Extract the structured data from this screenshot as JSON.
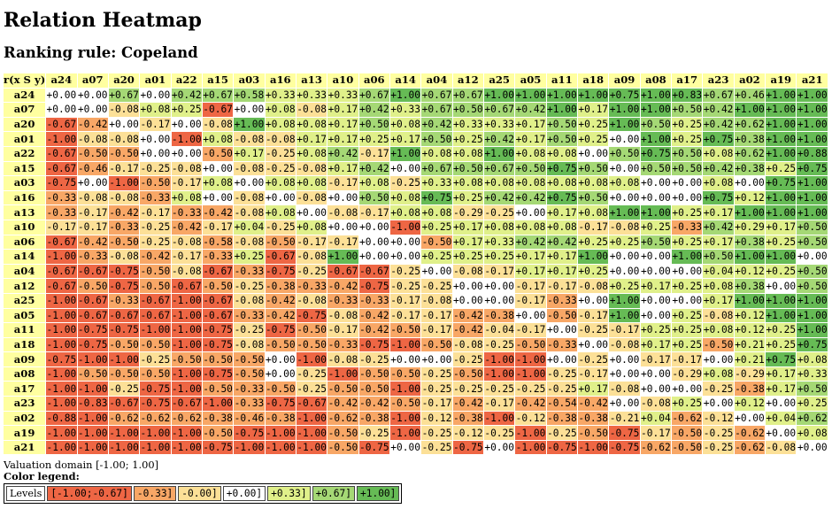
{
  "title": "Relation Heatmap",
  "subtitle": "Ranking rule: Copeland",
  "corner_label": "r(x S y)",
  "valuation_domain": "Valuation domain [-1.00; 1.00]",
  "legend": {
    "title": "Color legend:",
    "header": "Levels",
    "items": [
      {
        "label": "[-1.00;-0.67]",
        "color": "#ee6644"
      },
      {
        "label": "-0.33]",
        "color": "#f8a766"
      },
      {
        "label": "-0.00]",
        "color": "#fce097"
      },
      {
        "label": "+0.00]",
        "color": "#ffffff"
      },
      {
        "label": "+0.33]",
        "color": "#e0f08a"
      },
      {
        "label": "+0.67]",
        "color": "#a5d875"
      },
      {
        "label": "+1.00]",
        "color": "#66bb55"
      }
    ]
  },
  "chart_data": {
    "type": "heatmap",
    "title": "Relation Heatmap",
    "subtitle": "Ranking rule: Copeland",
    "domain": [
      -1.0,
      1.0
    ],
    "actions": [
      "a24",
      "a07",
      "a20",
      "a01",
      "a22",
      "a15",
      "a03",
      "a16",
      "a13",
      "a10",
      "a06",
      "a14",
      "a04",
      "a12",
      "a25",
      "a05",
      "a11",
      "a18",
      "a09",
      "a08",
      "a17",
      "a23",
      "a02",
      "a19",
      "a21"
    ],
    "matrix": [
      [
        "+0.00",
        "+0.00",
        "+0.67",
        "+0.00",
        "+0.42",
        "+0.67",
        "+0.58",
        "+0.33",
        "+0.33",
        "+0.33",
        "+0.67",
        "+1.00",
        "+0.67",
        "+0.67",
        "+1.00",
        "+1.00",
        "+1.00",
        "+1.00",
        "+0.75",
        "+1.00",
        "+0.83",
        "+0.67",
        "+0.46",
        "+1.00",
        "+1.00"
      ],
      [
        "+0.00",
        "+0.00",
        "-0.08",
        "+0.08",
        "+0.25",
        "-0.67",
        "+0.00",
        "+0.08",
        "-0.08",
        "+0.17",
        "+0.42",
        "+0.33",
        "+0.67",
        "+0.50",
        "+0.67",
        "+0.42",
        "+1.00",
        "+0.17",
        "+1.00",
        "+1.00",
        "+0.50",
        "+0.42",
        "+1.00",
        "+1.00",
        "+1.00"
      ],
      [
        "-0.67",
        "-0.42",
        "+0.00",
        "-0.17",
        "+0.00",
        "-0.08",
        "+1.00",
        "+0.08",
        "+0.08",
        "+0.17",
        "+0.50",
        "+0.08",
        "+0.42",
        "+0.33",
        "+0.33",
        "+0.17",
        "+0.50",
        "+0.25",
        "+1.00",
        "+0.50",
        "+0.25",
        "+0.42",
        "+0.62",
        "+1.00",
        "+1.00"
      ],
      [
        "-1.00",
        "-0.08",
        "-0.08",
        "+0.00",
        "-1.00",
        "+0.08",
        "-0.08",
        "-0.08",
        "+0.17",
        "+0.17",
        "+0.25",
        "+0.17",
        "+0.50",
        "+0.25",
        "+0.42",
        "+0.17",
        "+0.50",
        "+0.25",
        "+0.00",
        "+1.00",
        "+0.25",
        "+0.75",
        "+0.38",
        "+1.00",
        "+1.00"
      ],
      [
        "-0.67",
        "-0.50",
        "-0.50",
        "+0.00",
        "+0.00",
        "-0.50",
        "+0.17",
        "-0.25",
        "+0.08",
        "+0.42",
        "-0.17",
        "+1.00",
        "+0.08",
        "+0.08",
        "+1.00",
        "+0.08",
        "+0.08",
        "+0.00",
        "+0.50",
        "+0.75",
        "+0.50",
        "+0.08",
        "+0.62",
        "+1.00",
        "+0.88"
      ],
      [
        "-0.67",
        "-0.46",
        "-0.17",
        "-0.25",
        "-0.08",
        "+0.00",
        "-0.08",
        "-0.25",
        "-0.08",
        "+0.17",
        "+0.42",
        "+0.00",
        "+0.67",
        "+0.50",
        "+0.67",
        "+0.50",
        "+0.75",
        "+0.50",
        "+0.00",
        "+0.50",
        "+0.50",
        "+0.42",
        "+0.38",
        "+0.25",
        "+0.75"
      ],
      [
        "-0.75",
        "+0.00",
        "-1.00",
        "-0.50",
        "-0.17",
        "+0.08",
        "+0.00",
        "+0.08",
        "+0.08",
        "-0.17",
        "+0.08",
        "-0.25",
        "+0.33",
        "+0.08",
        "+0.08",
        "+0.08",
        "+0.08",
        "+0.08",
        "+0.08",
        "+0.00",
        "+0.00",
        "+0.08",
        "+0.00",
        "+0.75",
        "+1.00"
      ],
      [
        "-0.33",
        "-0.08",
        "-0.08",
        "-0.33",
        "+0.08",
        "+0.00",
        "-0.08",
        "+0.00",
        "-0.08",
        "+0.00",
        "+0.50",
        "+0.08",
        "+0.75",
        "+0.25",
        "+0.42",
        "+0.42",
        "+0.75",
        "+0.50",
        "+0.00",
        "+0.00",
        "+0.00",
        "+0.75",
        "+0.12",
        "+1.00",
        "+1.00"
      ],
      [
        "-0.33",
        "-0.17",
        "-0.42",
        "-0.17",
        "-0.33",
        "-0.42",
        "-0.08",
        "+0.08",
        "+0.00",
        "-0.08",
        "-0.17",
        "+0.08",
        "+0.08",
        "-0.29",
        "-0.25",
        "+0.00",
        "+0.17",
        "+0.08",
        "+1.00",
        "+1.00",
        "+0.25",
        "+0.17",
        "+1.00",
        "+1.00",
        "+1.00"
      ],
      [
        "-0.17",
        "-0.17",
        "-0.33",
        "-0.25",
        "-0.42",
        "-0.17",
        "+0.04",
        "-0.25",
        "+0.08",
        "+0.00",
        "+0.00",
        "-1.00",
        "+0.25",
        "+0.17",
        "+0.08",
        "+0.08",
        "+0.08",
        "-0.17",
        "-0.08",
        "+0.25",
        "-0.33",
        "+0.42",
        "+0.29",
        "+0.17",
        "+0.50"
      ],
      [
        "-0.67",
        "-0.42",
        "-0.50",
        "-0.25",
        "-0.08",
        "-0.58",
        "-0.08",
        "-0.50",
        "-0.17",
        "-0.17",
        "+0.00",
        "+0.00",
        "-0.50",
        "+0.17",
        "+0.33",
        "+0.42",
        "+0.42",
        "+0.25",
        "+0.25",
        "+0.50",
        "+0.25",
        "+0.17",
        "+0.38",
        "+0.25",
        "+0.50"
      ],
      [
        "-1.00",
        "-0.33",
        "-0.08",
        "-0.42",
        "-0.17",
        "-0.33",
        "+0.25",
        "-0.67",
        "-0.08",
        "+1.00",
        "+0.00",
        "+0.00",
        "+0.25",
        "+0.25",
        "+0.25",
        "+0.17",
        "+0.17",
        "+1.00",
        "+0.00",
        "+0.00",
        "+1.00",
        "+0.50",
        "+1.00",
        "+1.00",
        "+0.00"
      ],
      [
        "-0.67",
        "-0.67",
        "-0.75",
        "-0.50",
        "-0.08",
        "-0.67",
        "-0.33",
        "-0.75",
        "-0.25",
        "-0.67",
        "-0.67",
        "-0.25",
        "+0.00",
        "-0.08",
        "-0.17",
        "+0.17",
        "+0.17",
        "+0.25",
        "+0.00",
        "+0.00",
        "+0.00",
        "+0.04",
        "+0.12",
        "+0.25",
        "+0.50"
      ],
      [
        "-0.67",
        "-0.50",
        "-0.75",
        "-0.50",
        "-0.67",
        "-0.50",
        "-0.25",
        "-0.38",
        "-0.33",
        "-0.42",
        "-0.75",
        "-0.25",
        "-0.25",
        "+0.00",
        "+0.00",
        "-0.17",
        "-0.17",
        "-0.08",
        "+0.25",
        "+0.17",
        "+0.25",
        "+0.08",
        "+0.38",
        "+0.00",
        "+0.50"
      ],
      [
        "-1.00",
        "-0.67",
        "-0.33",
        "-0.67",
        "-1.00",
        "-0.67",
        "-0.08",
        "-0.42",
        "-0.08",
        "-0.33",
        "-0.33",
        "-0.17",
        "-0.08",
        "+0.00",
        "+0.00",
        "-0.17",
        "-0.33",
        "+0.00",
        "+1.00",
        "+0.00",
        "+0.00",
        "+0.17",
        "+1.00",
        "+1.00",
        "+1.00"
      ],
      [
        "-1.00",
        "-0.67",
        "-0.67",
        "-0.67",
        "-1.00",
        "-0.67",
        "-0.33",
        "-0.42",
        "-0.75",
        "-0.08",
        "-0.42",
        "-0.17",
        "-0.17",
        "-0.42",
        "-0.38",
        "+0.00",
        "-0.50",
        "-0.17",
        "+1.00",
        "+0.00",
        "+0.25",
        "-0.08",
        "+0.12",
        "+1.00",
        "+1.00"
      ],
      [
        "-1.00",
        "-0.75",
        "-0.75",
        "-1.00",
        "-1.00",
        "-0.75",
        "-0.25",
        "-0.75",
        "-0.50",
        "-0.17",
        "-0.42",
        "-0.50",
        "-0.17",
        "-0.42",
        "-0.04",
        "-0.17",
        "+0.00",
        "-0.25",
        "-0.17",
        "+0.25",
        "+0.25",
        "+0.08",
        "+0.12",
        "+0.25",
        "+1.00"
      ],
      [
        "-1.00",
        "-0.75",
        "-0.50",
        "-0.50",
        "-1.00",
        "-0.75",
        "-0.08",
        "-0.50",
        "-0.50",
        "-0.33",
        "-0.75",
        "-1.00",
        "-0.50",
        "-0.08",
        "-0.25",
        "-0.50",
        "-0.33",
        "+0.00",
        "-0.08",
        "+0.17",
        "+0.25",
        "-0.50",
        "+0.21",
        "+0.25",
        "+0.75"
      ],
      [
        "-0.75",
        "-1.00",
        "-1.00",
        "-0.25",
        "-0.50",
        "-0.50",
        "-0.50",
        "+0.00",
        "-1.00",
        "-0.08",
        "-0.25",
        "+0.00",
        "+0.00",
        "-0.25",
        "-1.00",
        "-1.00",
        "+0.00",
        "-0.25",
        "+0.00",
        "-0.17",
        "-0.17",
        "+0.00",
        "+0.21",
        "+0.75",
        "+0.08"
      ],
      [
        "-1.00",
        "-0.50",
        "-0.50",
        "-0.50",
        "-1.00",
        "-0.75",
        "-0.50",
        "+0.00",
        "-0.25",
        "-1.00",
        "-0.50",
        "-0.50",
        "-0.25",
        "-0.50",
        "-1.00",
        "-1.00",
        "-0.25",
        "-0.17",
        "+0.00",
        "+0.00",
        "-0.29",
        "+0.08",
        "-0.29",
        "+0.17",
        "+0.33"
      ],
      [
        "-1.00",
        "-1.00",
        "-0.25",
        "-0.75",
        "-1.00",
        "-0.50",
        "-0.33",
        "-0.50",
        "-0.25",
        "-0.50",
        "-0.50",
        "-1.00",
        "-0.25",
        "-0.25",
        "-0.25",
        "-0.25",
        "-0.25",
        "+0.17",
        "-0.08",
        "+0.00",
        "+0.00",
        "-0.25",
        "-0.38",
        "+0.17",
        "+0.50"
      ],
      [
        "-1.00",
        "-0.83",
        "-0.67",
        "-0.75",
        "-0.67",
        "-1.00",
        "-0.33",
        "-0.75",
        "-0.67",
        "-0.42",
        "-0.42",
        "-0.50",
        "-0.17",
        "-0.42",
        "-0.17",
        "-0.42",
        "-0.54",
        "-0.42",
        "+0.00",
        "-0.08",
        "+0.25",
        "+0.00",
        "+0.12",
        "+0.00",
        "+0.25"
      ],
      [
        "-0.88",
        "-1.00",
        "-0.62",
        "-0.62",
        "-0.62",
        "-0.38",
        "-0.46",
        "-0.38",
        "-1.00",
        "-0.62",
        "-0.38",
        "-1.00",
        "-0.12",
        "-0.38",
        "-1.00",
        "-0.12",
        "-0.38",
        "-0.38",
        "-0.21",
        "+0.04",
        "-0.62",
        "-0.12",
        "+0.00",
        "+0.04",
        "+0.62"
      ],
      [
        "-1.00",
        "-1.00",
        "-1.00",
        "-1.00",
        "-1.00",
        "-0.50",
        "-0.75",
        "-1.00",
        "-1.00",
        "-0.50",
        "-0.25",
        "-1.00",
        "-0.25",
        "-0.12",
        "-0.25",
        "-1.00",
        "-0.25",
        "-0.50",
        "-0.75",
        "-0.17",
        "-0.50",
        "-0.25",
        "-0.62",
        "+0.00",
        "+0.08"
      ],
      [
        "-1.00",
        "-1.00",
        "-1.00",
        "-1.00",
        "-1.00",
        "-0.75",
        "-1.00",
        "-1.00",
        "-1.00",
        "-0.50",
        "-0.75",
        "+0.00",
        "-0.25",
        "-0.75",
        "+0.00",
        "-1.00",
        "-0.75",
        "-1.00",
        "-0.75",
        "-0.62",
        "-0.50",
        "-0.25",
        "-0.62",
        "-0.08",
        "+0.00"
      ]
    ]
  }
}
